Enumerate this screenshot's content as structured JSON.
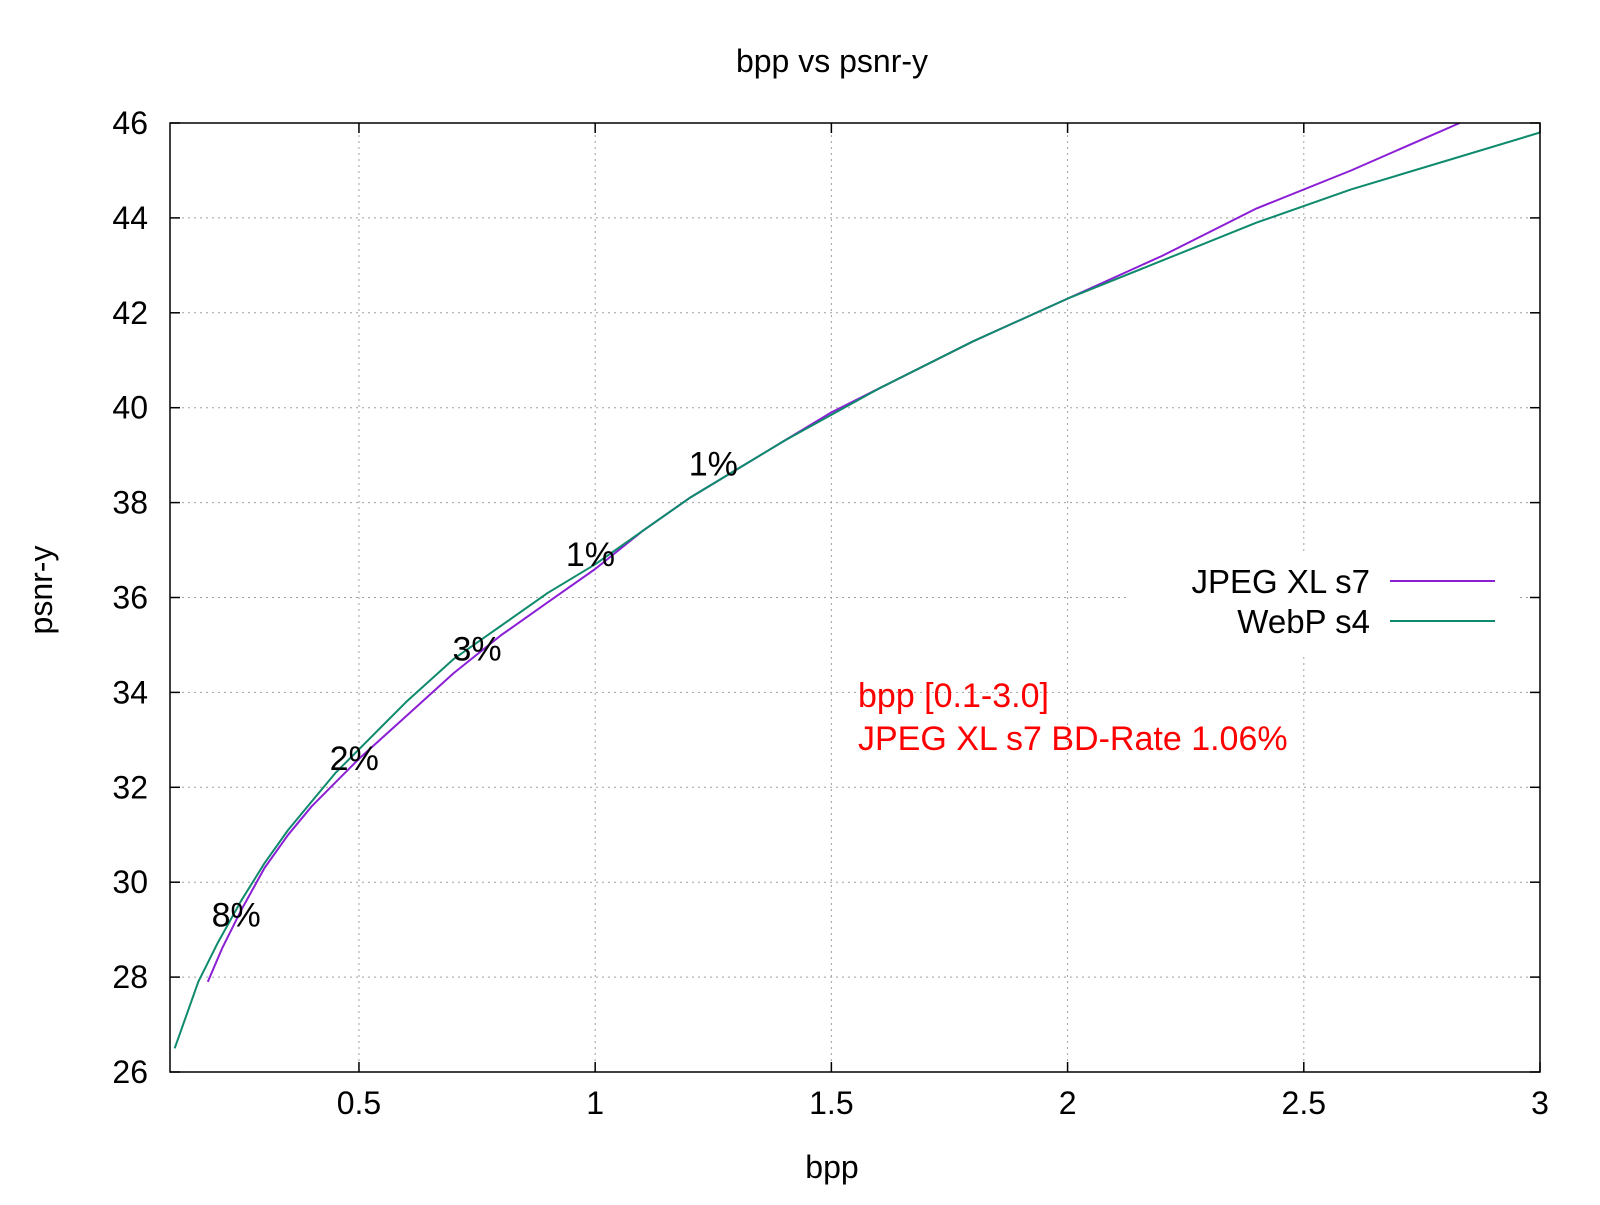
{
  "chart_data": {
    "type": "line",
    "title": "bpp vs psnr-y",
    "xlabel": "bpp",
    "ylabel": "psnr-y",
    "xlim": [
      0.1,
      3.0
    ],
    "ylim": [
      26,
      46
    ],
    "xticks": [
      0.5,
      1,
      1.5,
      2,
      2.5,
      3
    ],
    "xtick_labels": [
      "0.5",
      "1",
      "1.5",
      "2",
      "2.5",
      "3"
    ],
    "yticks": [
      26,
      28,
      30,
      32,
      34,
      36,
      38,
      40,
      42,
      44,
      46
    ],
    "ytick_labels": [
      "26",
      "28",
      "30",
      "32",
      "34",
      "36",
      "38",
      "40",
      "42",
      "44",
      "46"
    ],
    "grid": true,
    "legend_position": "right",
    "series": [
      {
        "name": "JPEG XL s7",
        "color": "#8b1fd6",
        "x": [
          0.18,
          0.21,
          0.25,
          0.3,
          0.35,
          0.4,
          0.45,
          0.5,
          0.6,
          0.7,
          0.8,
          0.9,
          1.0,
          1.1,
          1.2,
          1.3,
          1.4,
          1.5,
          1.6,
          1.8,
          2.0,
          2.2,
          2.4,
          2.6,
          2.83
        ],
        "y": [
          27.9,
          28.6,
          29.4,
          30.3,
          31.0,
          31.6,
          32.1,
          32.6,
          33.5,
          34.4,
          35.2,
          35.9,
          36.6,
          37.4,
          38.1,
          38.7,
          39.3,
          39.9,
          40.4,
          41.4,
          42.3,
          43.2,
          44.2,
          45.0,
          46.0
        ]
      },
      {
        "name": "WebP s4",
        "color": "#0e8a6c",
        "x": [
          0.11,
          0.16,
          0.2,
          0.25,
          0.3,
          0.35,
          0.4,
          0.45,
          0.5,
          0.6,
          0.7,
          0.8,
          0.9,
          1.0,
          1.1,
          1.2,
          1.3,
          1.4,
          1.6,
          1.8,
          2.0,
          2.2,
          2.4,
          2.6,
          2.8,
          3.0
        ],
        "y": [
          26.5,
          27.9,
          28.7,
          29.6,
          30.4,
          31.1,
          31.7,
          32.3,
          32.8,
          33.8,
          34.7,
          35.4,
          36.1,
          36.7,
          37.4,
          38.1,
          38.7,
          39.3,
          40.4,
          41.4,
          42.3,
          43.1,
          43.9,
          44.6,
          45.2,
          45.8
        ]
      }
    ],
    "annotations": [
      {
        "text": "8%",
        "x": 0.24,
        "y": 29.3
      },
      {
        "text": "2%",
        "x": 0.49,
        "y": 32.6
      },
      {
        "text": "3%",
        "x": 0.75,
        "y": 34.9
      },
      {
        "text": "1%",
        "x": 0.99,
        "y": 36.9
      },
      {
        "text": "1%",
        "x": 1.25,
        "y": 38.8
      }
    ],
    "note_lines": [
      "bpp [0.1-3.0]",
      "JPEG XL s7 BD-Rate 1.06%"
    ],
    "note_color": "#ff0000"
  }
}
